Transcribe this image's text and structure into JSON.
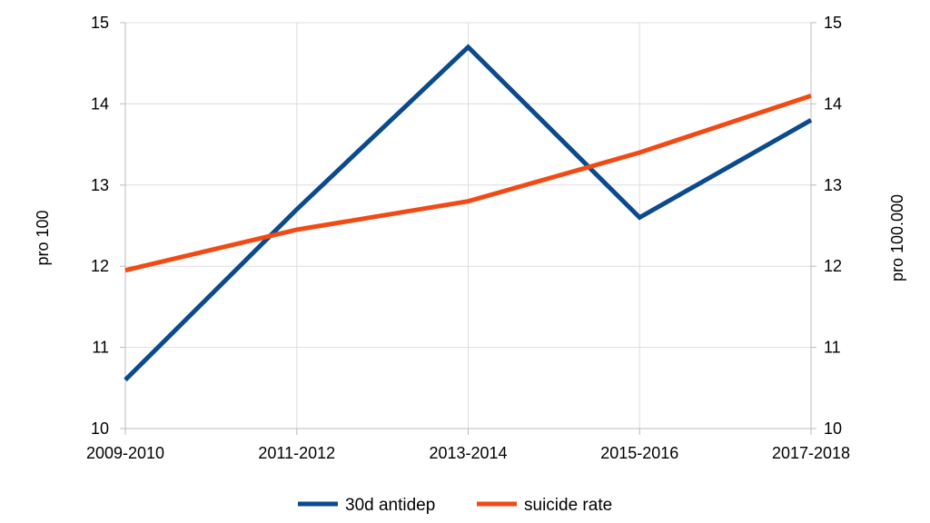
{
  "chart_data": {
    "type": "line",
    "title": "",
    "categories": [
      "2009-2010",
      "2011-2012",
      "2013-2014",
      "2015-2016",
      "2017-2018"
    ],
    "series": [
      {
        "name": "30d antidep",
        "axis": "left",
        "color": "#0b4a8c",
        "values": [
          10.6,
          12.7,
          14.7,
          12.6,
          13.8
        ]
      },
      {
        "name": "suicide rate",
        "axis": "right",
        "color": "#f24a14",
        "values": [
          11.95,
          12.45,
          12.8,
          13.4,
          14.1
        ]
      }
    ],
    "y_left": {
      "label": "pro 100",
      "ylim": [
        10,
        15
      ],
      "ticks": [
        "10",
        "11",
        "12",
        "13",
        "14",
        "15"
      ]
    },
    "y_right": {
      "label": "pro 100.000",
      "ylim": [
        10,
        15
      ],
      "ticks": [
        "10",
        "11",
        "12",
        "13",
        "14",
        "15"
      ]
    },
    "grid": true,
    "legend_position": "bottom-center"
  }
}
